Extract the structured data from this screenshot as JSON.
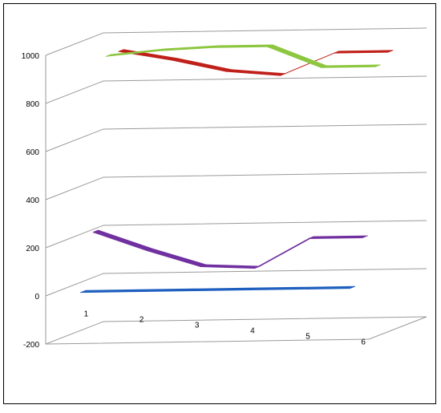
{
  "chart_data": {
    "type": "line",
    "style": "3d-ribbon",
    "categories": [
      "1",
      "2",
      "3",
      "4",
      "5",
      "6"
    ],
    "y_ticks": [
      -200,
      0,
      200,
      400,
      600,
      800,
      1000
    ],
    "ylim": [
      -200,
      1000
    ],
    "grid": true,
    "legend": "none",
    "title": "",
    "xlabel": "",
    "ylabel": "",
    "series": [
      {
        "color": "#1F5FBF",
        "values": [
          0,
          0,
          0,
          0,
          0,
          0
        ]
      },
      {
        "color": "#7030A0",
        "values": [
          230,
          150,
          80,
          70,
          190,
          190
        ]
      },
      {
        "color": "#8DC63F",
        "values": [
          940,
          960,
          970,
          970,
          880,
          880
        ]
      },
      {
        "color": "#C0201A",
        "values": [
          940,
          900,
          850,
          830,
          920,
          920
        ]
      }
    ]
  }
}
